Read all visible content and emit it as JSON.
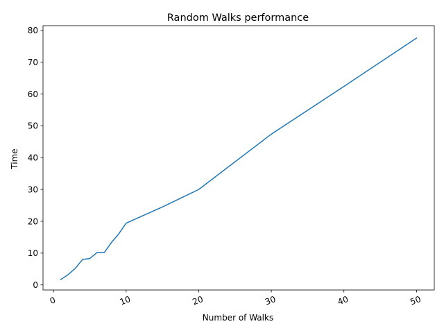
{
  "chart_data": {
    "type": "line",
    "title": "Random Walks performance",
    "xlabel": "Number of Walks",
    "ylabel": "Time",
    "xlim": [
      -1.45,
      52.45
    ],
    "ylim": [
      -1.6,
      81.5
    ],
    "xticks": [
      0,
      10,
      20,
      30,
      40,
      50
    ],
    "xtick_labels": [
      "0",
      "10",
      "20",
      "30",
      "40",
      "50"
    ],
    "yticks": [
      0,
      10,
      20,
      30,
      40,
      50,
      60,
      70,
      80
    ],
    "ytick_labels": [
      "0",
      "10",
      "20",
      "30",
      "40",
      "50",
      "60",
      "70",
      "80"
    ],
    "grid": false,
    "series": [
      {
        "color": "#1f77b4",
        "x": [
          1,
          2,
          3,
          4,
          5,
          6,
          7,
          8,
          9,
          10,
          15,
          20,
          30,
          40,
          50
        ],
        "y": [
          1.7,
          3.2,
          5.2,
          8.0,
          8.3,
          10.2,
          10.2,
          13.4,
          16.1,
          19.4,
          24.5,
          30.0,
          47.4,
          62.4,
          77.6
        ]
      }
    ]
  }
}
